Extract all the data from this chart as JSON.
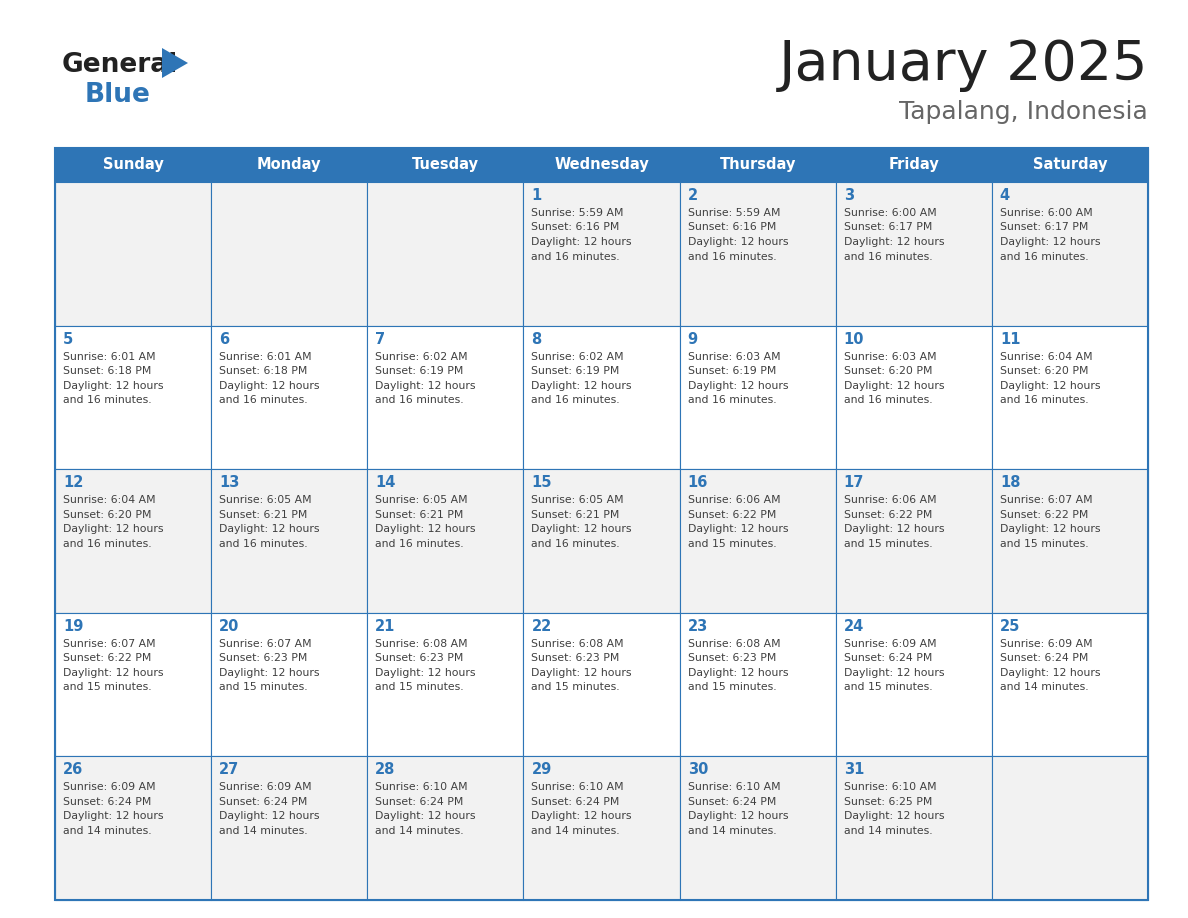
{
  "title": "January 2025",
  "subtitle": "Tapalang, Indonesia",
  "days_of_week": [
    "Sunday",
    "Monday",
    "Tuesday",
    "Wednesday",
    "Thursday",
    "Friday",
    "Saturday"
  ],
  "header_bg": "#2E75B6",
  "header_text": "#FFFFFF",
  "odd_row_bg": "#F2F2F2",
  "even_row_bg": "#FFFFFF",
  "border_color": "#2E75B6",
  "day_num_color": "#2E75B6",
  "text_color": "#404040",
  "title_color": "#222222",
  "subtitle_color": "#666666",
  "logo_general_color": "#222222",
  "logo_blue_color": "#2E75B6",
  "weeks": [
    [
      {
        "date": "",
        "sunrise": "",
        "sunset": "",
        "daylight": ""
      },
      {
        "date": "",
        "sunrise": "",
        "sunset": "",
        "daylight": ""
      },
      {
        "date": "",
        "sunrise": "",
        "sunset": "",
        "daylight": ""
      },
      {
        "date": "1",
        "sunrise": "5:59 AM",
        "sunset": "6:16 PM",
        "daylight": "16 minutes."
      },
      {
        "date": "2",
        "sunrise": "5:59 AM",
        "sunset": "6:16 PM",
        "daylight": "16 minutes."
      },
      {
        "date": "3",
        "sunrise": "6:00 AM",
        "sunset": "6:17 PM",
        "daylight": "16 minutes."
      },
      {
        "date": "4",
        "sunrise": "6:00 AM",
        "sunset": "6:17 PM",
        "daylight": "16 minutes."
      }
    ],
    [
      {
        "date": "5",
        "sunrise": "6:01 AM",
        "sunset": "6:18 PM",
        "daylight": "16 minutes."
      },
      {
        "date": "6",
        "sunrise": "6:01 AM",
        "sunset": "6:18 PM",
        "daylight": "16 minutes."
      },
      {
        "date": "7",
        "sunrise": "6:02 AM",
        "sunset": "6:19 PM",
        "daylight": "16 minutes."
      },
      {
        "date": "8",
        "sunrise": "6:02 AM",
        "sunset": "6:19 PM",
        "daylight": "16 minutes."
      },
      {
        "date": "9",
        "sunrise": "6:03 AM",
        "sunset": "6:19 PM",
        "daylight": "16 minutes."
      },
      {
        "date": "10",
        "sunrise": "6:03 AM",
        "sunset": "6:20 PM",
        "daylight": "16 minutes."
      },
      {
        "date": "11",
        "sunrise": "6:04 AM",
        "sunset": "6:20 PM",
        "daylight": "16 minutes."
      }
    ],
    [
      {
        "date": "12",
        "sunrise": "6:04 AM",
        "sunset": "6:20 PM",
        "daylight": "16 minutes."
      },
      {
        "date": "13",
        "sunrise": "6:05 AM",
        "sunset": "6:21 PM",
        "daylight": "16 minutes."
      },
      {
        "date": "14",
        "sunrise": "6:05 AM",
        "sunset": "6:21 PM",
        "daylight": "16 minutes."
      },
      {
        "date": "15",
        "sunrise": "6:05 AM",
        "sunset": "6:21 PM",
        "daylight": "16 minutes."
      },
      {
        "date": "16",
        "sunrise": "6:06 AM",
        "sunset": "6:22 PM",
        "daylight": "15 minutes."
      },
      {
        "date": "17",
        "sunrise": "6:06 AM",
        "sunset": "6:22 PM",
        "daylight": "15 minutes."
      },
      {
        "date": "18",
        "sunrise": "6:07 AM",
        "sunset": "6:22 PM",
        "daylight": "15 minutes."
      }
    ],
    [
      {
        "date": "19",
        "sunrise": "6:07 AM",
        "sunset": "6:22 PM",
        "daylight": "15 minutes."
      },
      {
        "date": "20",
        "sunrise": "6:07 AM",
        "sunset": "6:23 PM",
        "daylight": "15 minutes."
      },
      {
        "date": "21",
        "sunrise": "6:08 AM",
        "sunset": "6:23 PM",
        "daylight": "15 minutes."
      },
      {
        "date": "22",
        "sunrise": "6:08 AM",
        "sunset": "6:23 PM",
        "daylight": "15 minutes."
      },
      {
        "date": "23",
        "sunrise": "6:08 AM",
        "sunset": "6:23 PM",
        "daylight": "15 minutes."
      },
      {
        "date": "24",
        "sunrise": "6:09 AM",
        "sunset": "6:24 PM",
        "daylight": "15 minutes."
      },
      {
        "date": "25",
        "sunrise": "6:09 AM",
        "sunset": "6:24 PM",
        "daylight": "14 minutes."
      }
    ],
    [
      {
        "date": "26",
        "sunrise": "6:09 AM",
        "sunset": "6:24 PM",
        "daylight": "14 minutes."
      },
      {
        "date": "27",
        "sunrise": "6:09 AM",
        "sunset": "6:24 PM",
        "daylight": "14 minutes."
      },
      {
        "date": "28",
        "sunrise": "6:10 AM",
        "sunset": "6:24 PM",
        "daylight": "14 minutes."
      },
      {
        "date": "29",
        "sunrise": "6:10 AM",
        "sunset": "6:24 PM",
        "daylight": "14 minutes."
      },
      {
        "date": "30",
        "sunrise": "6:10 AM",
        "sunset": "6:24 PM",
        "daylight": "14 minutes."
      },
      {
        "date": "31",
        "sunrise": "6:10 AM",
        "sunset": "6:25 PM",
        "daylight": "14 minutes."
      },
      {
        "date": "",
        "sunrise": "",
        "sunset": "",
        "daylight": ""
      }
    ]
  ]
}
